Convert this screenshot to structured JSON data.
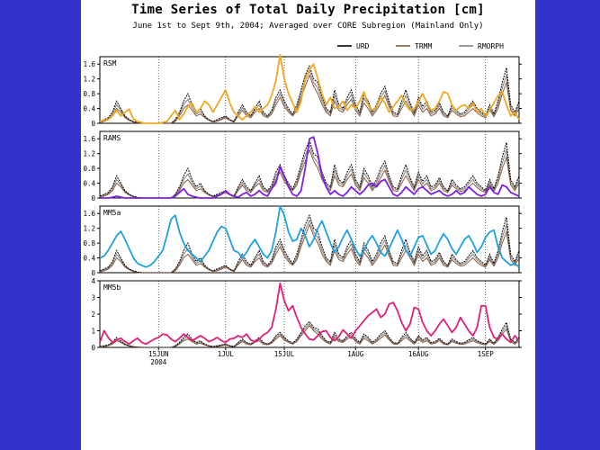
{
  "title": "Time Series of Total Daily Precipitation [cm]",
  "subtitle": "June 1st to Sept 9th, 2004; Averaged over CORE Subregion (Mainland Only)",
  "chart_data": {
    "type": "line",
    "n_days": 101,
    "x_start": "2004-06-01",
    "x_ticks": [
      {
        "day": 14,
        "label": "15JUN",
        "sublabel": "2004"
      },
      {
        "day": 30,
        "label": "1JUL",
        "sublabel": ""
      },
      {
        "day": 44,
        "label": "15JUL",
        "sublabel": ""
      },
      {
        "day": 61,
        "label": "1AUG",
        "sublabel": ""
      },
      {
        "day": 76,
        "label": "16AUG",
        "sublabel": ""
      },
      {
        "day": 92,
        "label": "1SEP",
        "sublabel": ""
      }
    ],
    "legend": [
      {
        "name": "URD",
        "color": "#000000"
      },
      {
        "name": "TRMM",
        "color": "#8b5a3c"
      },
      {
        "name": "RMORPH",
        "color": "#808080"
      }
    ],
    "observations": {
      "URD": [
        0.05,
        0.1,
        0.15,
        0.3,
        0.6,
        0.4,
        0.2,
        0.1,
        0.05,
        0.02,
        0,
        0,
        0,
        0,
        0,
        0,
        0,
        0,
        0.1,
        0.3,
        0.6,
        0.8,
        0.5,
        0.3,
        0.4,
        0.2,
        0.1,
        0.05,
        0.1,
        0.15,
        0.2,
        0.1,
        0.05,
        0.3,
        0.5,
        0.3,
        0.2,
        0.4,
        0.6,
        0.3,
        0.2,
        0.35,
        0.7,
        0.9,
        0.6,
        0.4,
        0.25,
        0.5,
        0.9,
        1.3,
        1.55,
        1.2,
        1.1,
        0.7,
        0.4,
        0.3,
        0.9,
        0.5,
        0.4,
        0.7,
        0.9,
        0.5,
        0.3,
        0.8,
        0.6,
        0.3,
        0.5,
        0.8,
        1.0,
        0.6,
        0.3,
        0.25,
        0.6,
        0.9,
        0.55,
        0.3,
        0.7,
        0.45,
        0.6,
        0.3,
        0.35,
        0.55,
        0.3,
        0.2,
        0.5,
        0.35,
        0.25,
        0.3,
        0.45,
        0.6,
        0.4,
        0.3,
        0.2,
        0.5,
        0.25,
        0.6,
        1.1,
        1.5,
        0.5,
        0.3,
        0.6
      ],
      "TRMM": [
        0.02,
        0.05,
        0.1,
        0.2,
        0.4,
        0.3,
        0.15,
        0.08,
        0.03,
        0.01,
        0,
        0,
        0,
        0,
        0,
        0,
        0,
        0,
        0.05,
        0.2,
        0.4,
        0.5,
        0.35,
        0.2,
        0.25,
        0.15,
        0.08,
        0.03,
        0.05,
        0.1,
        0.15,
        0.08,
        0.03,
        0.2,
        0.35,
        0.2,
        0.15,
        0.3,
        0.4,
        0.2,
        0.15,
        0.25,
        0.5,
        0.7,
        0.45,
        0.3,
        0.2,
        0.35,
        0.7,
        1.0,
        1.3,
        1.0,
        0.8,
        0.5,
        0.3,
        0.2,
        0.6,
        0.35,
        0.3,
        0.5,
        0.65,
        0.35,
        0.2,
        0.55,
        0.4,
        0.2,
        0.35,
        0.55,
        0.75,
        0.45,
        0.2,
        0.18,
        0.4,
        0.6,
        0.4,
        0.2,
        0.5,
        0.3,
        0.4,
        0.2,
        0.25,
        0.4,
        0.2,
        0.15,
        0.35,
        0.25,
        0.18,
        0.2,
        0.3,
        0.4,
        0.28,
        0.2,
        0.15,
        0.35,
        0.18,
        0.4,
        0.8,
        1.1,
        0.35,
        0.2,
        0.4
      ],
      "RMORPH": [
        0.03,
        0.07,
        0.12,
        0.25,
        0.5,
        0.35,
        0.18,
        0.09,
        0.04,
        0.01,
        0,
        0,
        0,
        0,
        0,
        0,
        0,
        0,
        0.08,
        0.25,
        0.5,
        0.65,
        0.42,
        0.25,
        0.32,
        0.18,
        0.09,
        0.04,
        0.08,
        0.12,
        0.18,
        0.09,
        0.04,
        0.25,
        0.42,
        0.25,
        0.18,
        0.35,
        0.5,
        0.25,
        0.18,
        0.3,
        0.6,
        0.8,
        0.52,
        0.35,
        0.22,
        0.42,
        0.8,
        1.15,
        1.42,
        1.1,
        0.95,
        0.6,
        0.35,
        0.25,
        0.75,
        0.42,
        0.35,
        0.6,
        0.78,
        0.42,
        0.25,
        0.68,
        0.5,
        0.25,
        0.42,
        0.68,
        0.88,
        0.52,
        0.25,
        0.22,
        0.5,
        0.75,
        0.48,
        0.25,
        0.6,
        0.38,
        0.5,
        0.25,
        0.3,
        0.48,
        0.25,
        0.18,
        0.42,
        0.3,
        0.22,
        0.25,
        0.38,
        0.5,
        0.34,
        0.25,
        0.18,
        0.42,
        0.22,
        0.5,
        0.95,
        1.3,
        0.42,
        0.25,
        0.5
      ]
    },
    "panels": [
      {
        "label": "RSM",
        "ylim": [
          0,
          1.8
        ],
        "yticks": [
          0,
          0.4,
          0.8,
          1.2,
          1.6
        ],
        "ytick_labels": [
          "0",
          "0.4",
          "0.8",
          "1.2",
          "1.6"
        ],
        "model_color": "#f0a820",
        "model_values": [
          0.05,
          0.08,
          0.1,
          0.2,
          0.35,
          0.2,
          0.3,
          0.38,
          0.12,
          0.05,
          0.02,
          0,
          0,
          0,
          0,
          0.02,
          0.05,
          0.2,
          0.35,
          0.1,
          0.25,
          0.45,
          0.55,
          0.3,
          0.4,
          0.6,
          0.5,
          0.3,
          0.5,
          0.7,
          0.9,
          0.55,
          0.3,
          0.2,
          0.1,
          0.2,
          0.3,
          0.45,
          0.3,
          0.4,
          0.5,
          0.75,
          1.15,
          1.85,
          1.2,
          0.8,
          0.55,
          0.3,
          0.6,
          1.2,
          1.45,
          1.6,
          1.2,
          0.8,
          0.5,
          0.7,
          0.4,
          0.45,
          0.6,
          0.35,
          0.5,
          0.4,
          0.6,
          0.85,
          0.5,
          0.35,
          0.45,
          0.7,
          0.55,
          0.3,
          0.45,
          0.6,
          0.75,
          0.5,
          0.35,
          0.4,
          0.6,
          0.8,
          0.55,
          0.35,
          0.4,
          0.6,
          0.85,
          0.8,
          0.5,
          0.35,
          0.45,
          0.5,
          0.4,
          0.55,
          0.3,
          0.4,
          0.2,
          0.35,
          0.55,
          0.75,
          0.85,
          0.5,
          0.2,
          0.3,
          0.1
        ]
      },
      {
        "label": "RAMS",
        "ylim": [
          0,
          1.8
        ],
        "yticks": [
          0,
          0.4,
          0.8,
          1.2,
          1.6
        ],
        "ytick_labels": [
          "0",
          "0.4",
          "0.8",
          "1.2",
          "1.6"
        ],
        "model_color": "#7f1fe0",
        "model_values": [
          0,
          0,
          0,
          0.02,
          0.05,
          0.02,
          0,
          0,
          0,
          0,
          0,
          0,
          0,
          0,
          0,
          0,
          0,
          0,
          0.05,
          0.15,
          0.25,
          0.1,
          0.05,
          0.02,
          0,
          0,
          0,
          0,
          0.05,
          0.1,
          0.2,
          0.1,
          0.05,
          0.02,
          0.1,
          0.15,
          0.05,
          0.1,
          0.2,
          0.1,
          0.05,
          0.25,
          0.4,
          0.85,
          0.6,
          0.3,
          0.1,
          0.05,
          0.2,
          0.8,
          1.6,
          1.65,
          1.2,
          0.6,
          0.3,
          0.1,
          0.2,
          0.1,
          0.05,
          0.15,
          0.3,
          0.2,
          0.1,
          0.2,
          0.35,
          0.4,
          0.3,
          0.45,
          0.5,
          0.3,
          0.1,
          0.05,
          0.15,
          0.3,
          0.2,
          0.1,
          0.25,
          0.3,
          0.2,
          0.1,
          0.15,
          0.2,
          0.1,
          0.05,
          0.1,
          0.2,
          0.1,
          0.15,
          0.3,
          0.2,
          0.1,
          0.05,
          0.1,
          0.3,
          0.15,
          0.1,
          0.35,
          0.3,
          0.15,
          0.1,
          0.05
        ]
      },
      {
        "label": "MM5a",
        "ylim": [
          0,
          1.8
        ],
        "yticks": [
          0,
          0.4,
          0.8,
          1.2,
          1.6
        ],
        "ytick_labels": [
          "0",
          "0.4",
          "0.8",
          "1.2",
          "1.6"
        ],
        "model_color": "#1fa0e0",
        "model_values": [
          0.4,
          0.45,
          0.6,
          0.8,
          1.0,
          1.12,
          0.9,
          0.65,
          0.4,
          0.25,
          0.2,
          0.15,
          0.2,
          0.3,
          0.45,
          0.6,
          1.0,
          1.45,
          1.55,
          1.1,
          0.8,
          0.6,
          0.5,
          0.4,
          0.3,
          0.45,
          0.6,
          0.85,
          1.1,
          1.25,
          1.2,
          0.9,
          0.6,
          0.55,
          0.4,
          0.55,
          0.75,
          0.9,
          0.7,
          0.5,
          0.4,
          0.6,
          1.1,
          1.8,
          1.55,
          1.1,
          0.85,
          0.9,
          1.2,
          1.0,
          0.7,
          0.9,
          1.2,
          1.4,
          1.1,
          0.8,
          0.55,
          0.7,
          0.95,
          1.15,
          0.9,
          0.65,
          0.45,
          0.6,
          0.85,
          1.0,
          0.8,
          0.55,
          0.45,
          0.65,
          0.9,
          1.15,
          0.9,
          0.6,
          0.45,
          0.7,
          0.95,
          1.0,
          0.75,
          0.5,
          0.6,
          0.85,
          1.05,
          0.9,
          0.65,
          0.5,
          0.7,
          0.9,
          1.0,
          0.8,
          0.55,
          0.7,
          0.95,
          1.1,
          1.15,
          0.7,
          0.4,
          0.3,
          0.2,
          0.25,
          0.15
        ]
      },
      {
        "label": "MM5b",
        "ylim": [
          0,
          4
        ],
        "yticks": [
          0,
          1,
          2,
          3,
          4
        ],
        "ytick_labels": [
          "0",
          "1",
          "2",
          "3",
          "4"
        ],
        "model_color": "#e01f78",
        "model_values": [
          0.3,
          1.0,
          0.6,
          0.3,
          0.45,
          0.55,
          0.35,
          0.2,
          0.4,
          0.55,
          0.3,
          0.2,
          0.35,
          0.5,
          0.6,
          0.8,
          0.75,
          0.5,
          0.35,
          0.55,
          0.8,
          0.6,
          0.4,
          0.55,
          0.7,
          0.55,
          0.35,
          0.45,
          0.6,
          0.4,
          0.3,
          0.5,
          0.55,
          0.7,
          0.6,
          0.8,
          0.45,
          0.35,
          0.5,
          0.75,
          0.9,
          1.2,
          2.3,
          3.85,
          2.8,
          2.2,
          2.5,
          1.8,
          1.2,
          0.8,
          0.5,
          0.45,
          0.7,
          0.95,
          1.0,
          0.6,
          0.4,
          0.65,
          1.05,
          0.8,
          0.55,
          1.0,
          1.3,
          1.6,
          1.9,
          2.1,
          2.3,
          1.8,
          2.0,
          2.6,
          2.7,
          2.2,
          1.5,
          1.0,
          1.4,
          2.4,
          2.3,
          1.5,
          1.0,
          0.7,
          1.0,
          1.4,
          1.7,
          1.3,
          0.9,
          1.2,
          1.8,
          1.4,
          1.0,
          0.7,
          1.2,
          2.5,
          2.5,
          1.2,
          0.6,
          0.5,
          0.8,
          0.5,
          0.3,
          0.7,
          0.4
        ]
      }
    ]
  }
}
